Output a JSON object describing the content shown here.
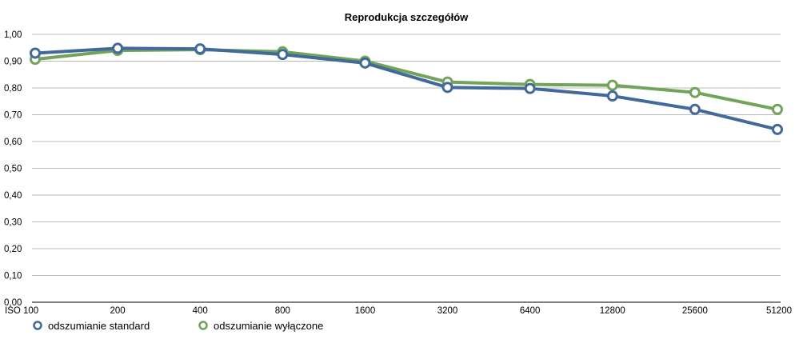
{
  "chart_data": {
    "type": "line",
    "title": "Reprodukcja szczegółów",
    "xlabel": "",
    "ylabel": "",
    "categories": [
      "ISO 100",
      "200",
      "400",
      "800",
      "1600",
      "3200",
      "6400",
      "12800",
      "25600",
      "51200"
    ],
    "y_ticks": [
      "0,00",
      "0,10",
      "0,20",
      "0,30",
      "0,40",
      "0,50",
      "0,60",
      "0,70",
      "0,80",
      "0,90",
      "1,00"
    ],
    "ylim": [
      0,
      1
    ],
    "grid": true,
    "legend_position": "bottom-left",
    "series": [
      {
        "name": "odszumianie standard",
        "color": "#41699a",
        "values": [
          0.93,
          0.948,
          0.946,
          0.925,
          0.893,
          0.802,
          0.798,
          0.77,
          0.72,
          0.645
        ]
      },
      {
        "name": "odszumianie wyłączone",
        "color": "#72a35a",
        "values": [
          0.907,
          0.94,
          0.943,
          0.935,
          0.9,
          0.822,
          0.813,
          0.81,
          0.783,
          0.72
        ]
      }
    ]
  }
}
